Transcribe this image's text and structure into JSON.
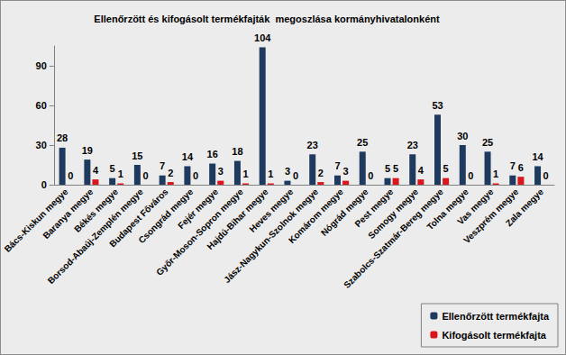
{
  "chart_data": {
    "type": "bar",
    "title": "Ellenőrzött és kifogásolt termékfajták  megoszlása kormányhivatalonként",
    "categories": [
      "Bács-Kiskun megye",
      "Baranya megye",
      "Békés megye",
      "Borsod-Abaúj-Zemplén megye",
      "Budapest Főváros",
      "Csongrád megye",
      "Fejér megye",
      "Győr-Moson-Sopron megye",
      "Hajdú-Bihar megye",
      "Heves megye",
      "Jász-Nagykun-Szolnok megye",
      "Komárom megye",
      "Nógrád megye",
      "Pest megye",
      "Somogy megye",
      "Szabolcs-Szatmár-Bereg megye",
      "Tolna megye",
      "Vas megye",
      "Veszprém megye",
      "Zala megye"
    ],
    "series": [
      {
        "name": "Ellenőrzött termékfajta",
        "color": "#1f3a5f",
        "values": [
          28,
          19,
          5,
          15,
          7,
          14,
          16,
          18,
          104,
          3,
          23,
          7,
          25,
          5,
          23,
          53,
          30,
          25,
          7,
          14
        ]
      },
      {
        "name": "Kifogásolt termékfajta",
        "color": "#d9161c",
        "values": [
          0,
          4,
          1,
          0,
          2,
          0,
          3,
          1,
          1,
          0,
          2,
          3,
          0,
          5,
          4,
          5,
          0,
          1,
          6,
          0
        ]
      }
    ],
    "ylim": [
      0,
      105
    ],
    "yticks": [
      0,
      30,
      60,
      90
    ],
    "grid": false,
    "legend": "bottom-right",
    "data_labels": true
  }
}
